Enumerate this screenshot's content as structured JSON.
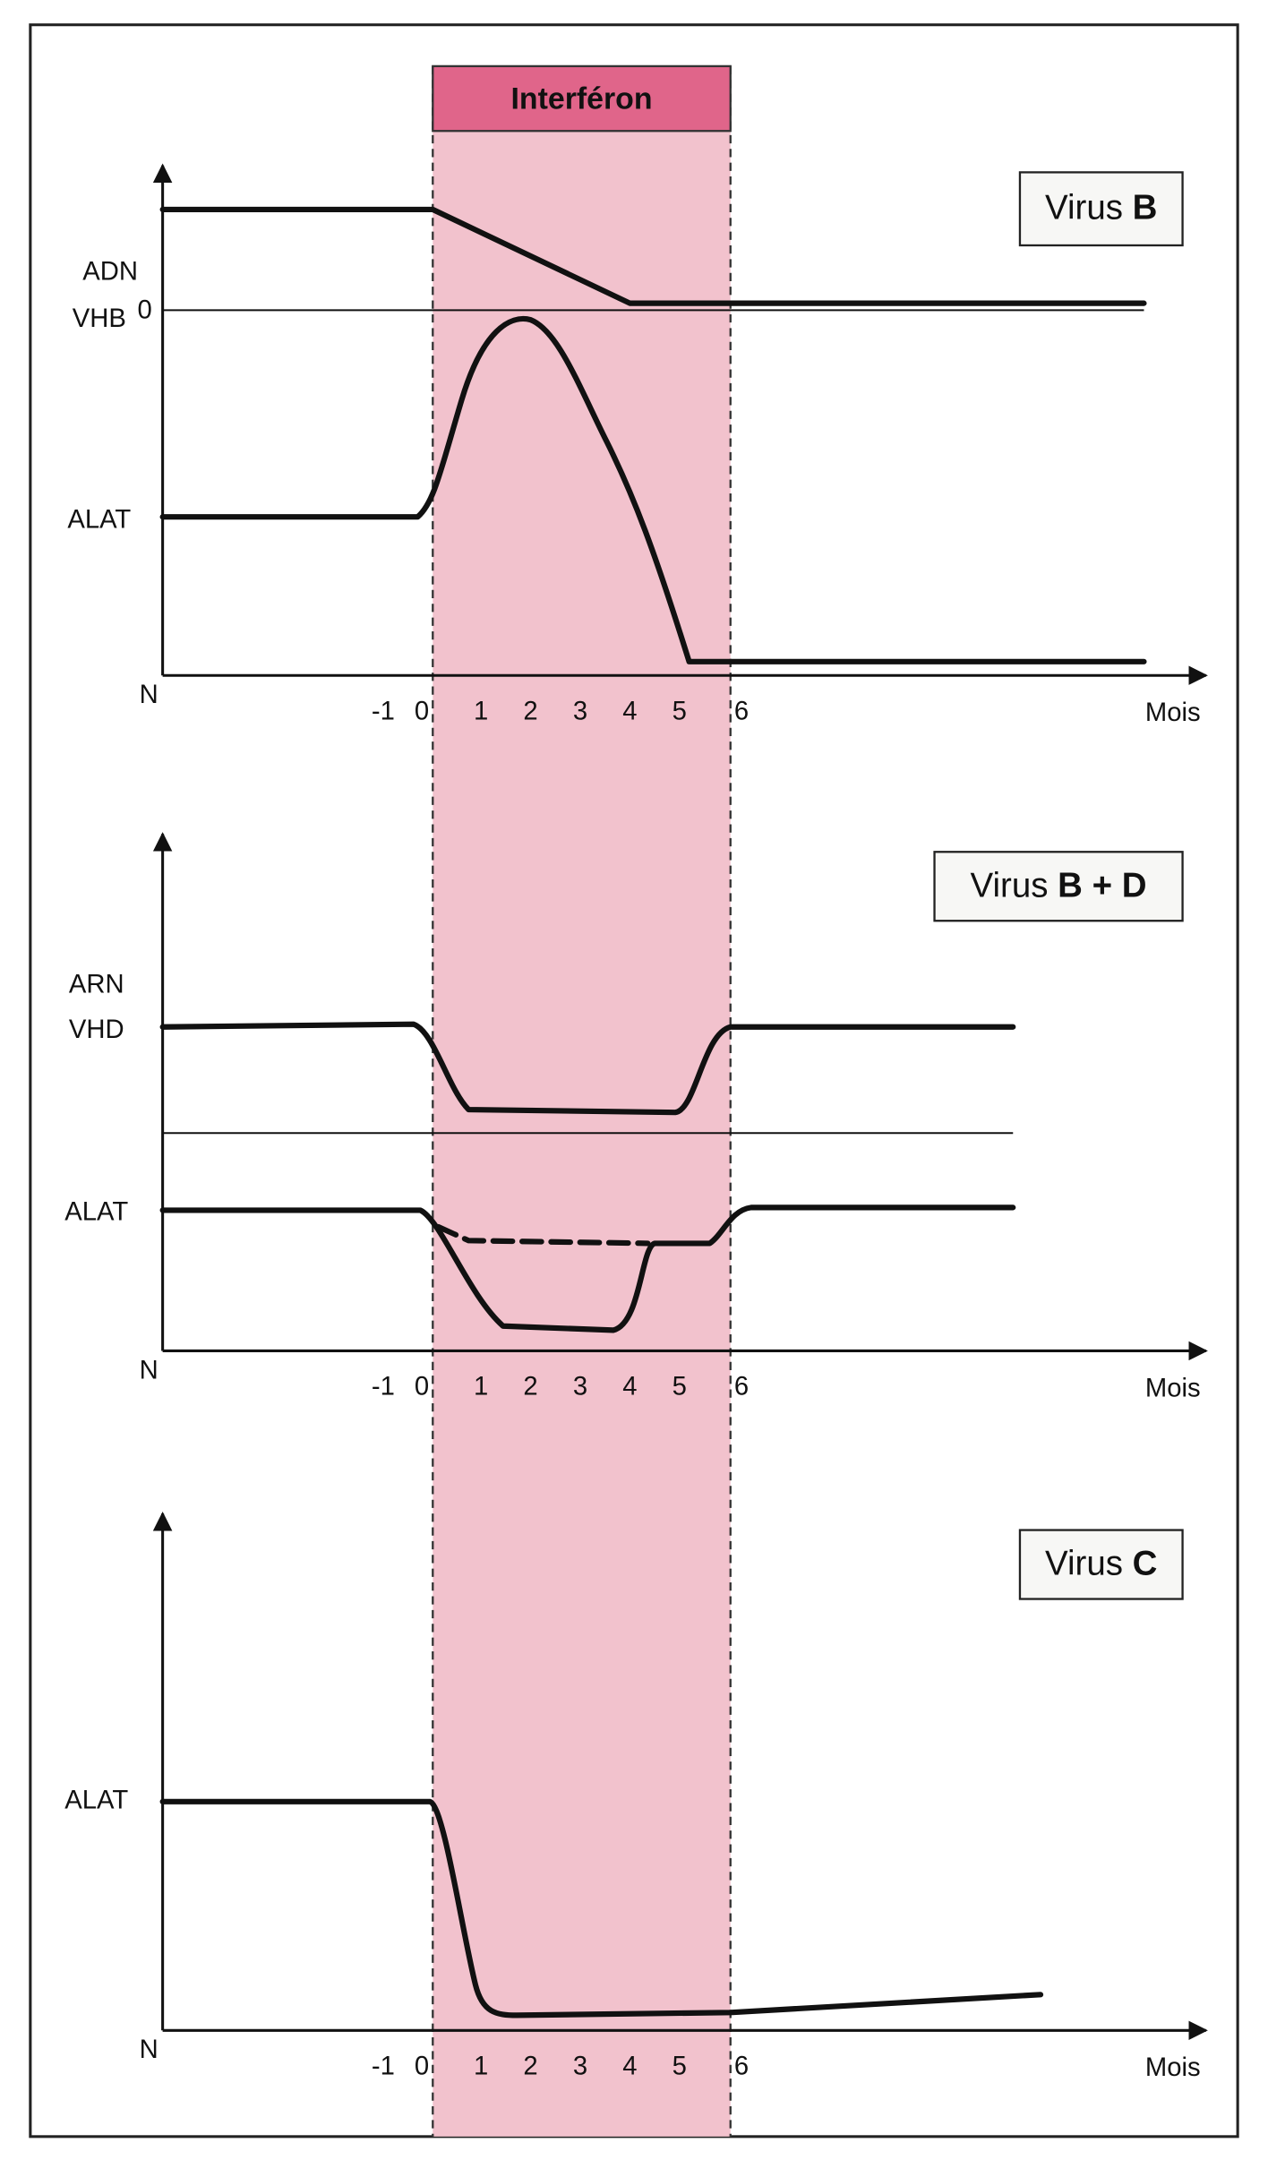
{
  "band": {
    "label": "Interféron"
  },
  "panels": [
    {
      "title": "Virus",
      "title_strong": "B",
      "origin": "N",
      "x_axis_label": "Mois",
      "x_ticks": [
        "-1",
        "0",
        "1",
        "2",
        "3",
        "4",
        "5",
        "6"
      ],
      "y_labels": [
        "ADN",
        "VHB",
        "0",
        "ALAT"
      ]
    },
    {
      "title": "Virus",
      "title_strong": "B + D",
      "origin": "N",
      "x_axis_label": "Mois",
      "x_ticks": [
        "-1",
        "0",
        "1",
        "2",
        "3",
        "4",
        "5",
        "6"
      ],
      "y_labels": [
        "ARN",
        "VHD",
        "ALAT"
      ]
    },
    {
      "title": "Virus",
      "title_strong": "C",
      "origin": "N",
      "x_axis_label": "Mois",
      "x_ticks": [
        "-1",
        "0",
        "1",
        "2",
        "3",
        "4",
        "5",
        "6"
      ],
      "y_labels": [
        "ALAT"
      ]
    }
  ]
}
